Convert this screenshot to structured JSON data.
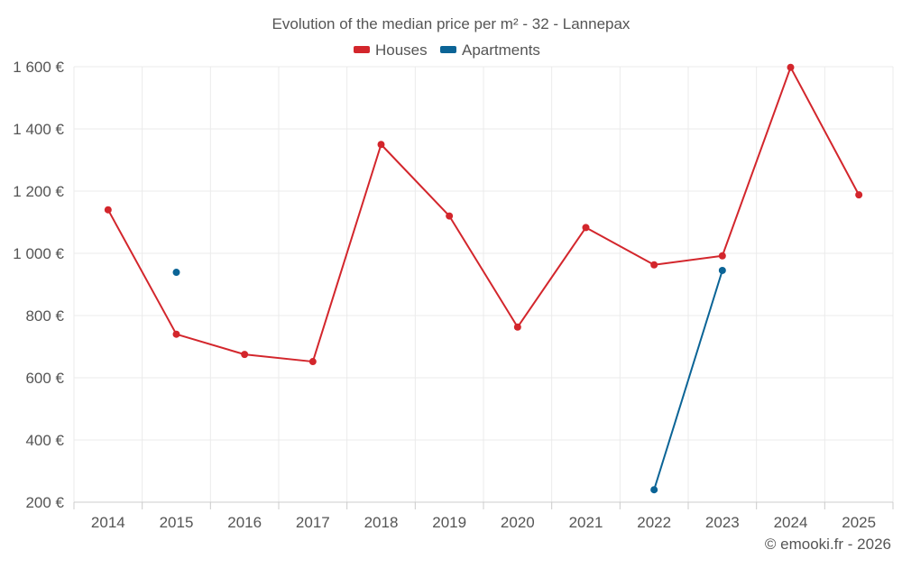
{
  "chart_data": {
    "type": "line",
    "title": "Evolution of the median price per m² - 32 - Lannepax",
    "categories": [
      "2014",
      "2015",
      "2016",
      "2017",
      "2018",
      "2019",
      "2020",
      "2021",
      "2022",
      "2023",
      "2024",
      "2025"
    ],
    "y_ticks": [
      200,
      400,
      600,
      800,
      1000,
      1200,
      1400,
      1600
    ],
    "y_tick_labels": [
      "200 €",
      "400 €",
      "600 €",
      "800 €",
      "1 000 €",
      "1 200 €",
      "1 400 €",
      "1 600 €"
    ],
    "ylim": [
      200,
      1600
    ],
    "xlabel": "",
    "ylabel": "",
    "grid": true,
    "legend_position": "top-center",
    "series": [
      {
        "name": "Houses",
        "color": "#d3262c",
        "values": [
          1140,
          740,
          675,
          652,
          1350,
          1120,
          763,
          1083,
          963,
          992,
          1598,
          1188
        ]
      },
      {
        "name": "Apartments",
        "color": "#0b6496",
        "values": [
          null,
          939,
          null,
          null,
          null,
          null,
          null,
          null,
          240,
          945,
          null,
          null
        ]
      }
    ]
  },
  "footer": {
    "copyright": "© emooki.fr - 2026"
  },
  "colors": {
    "grid": "#ebebeb",
    "axis": "#cccccc",
    "text": "#555555"
  }
}
